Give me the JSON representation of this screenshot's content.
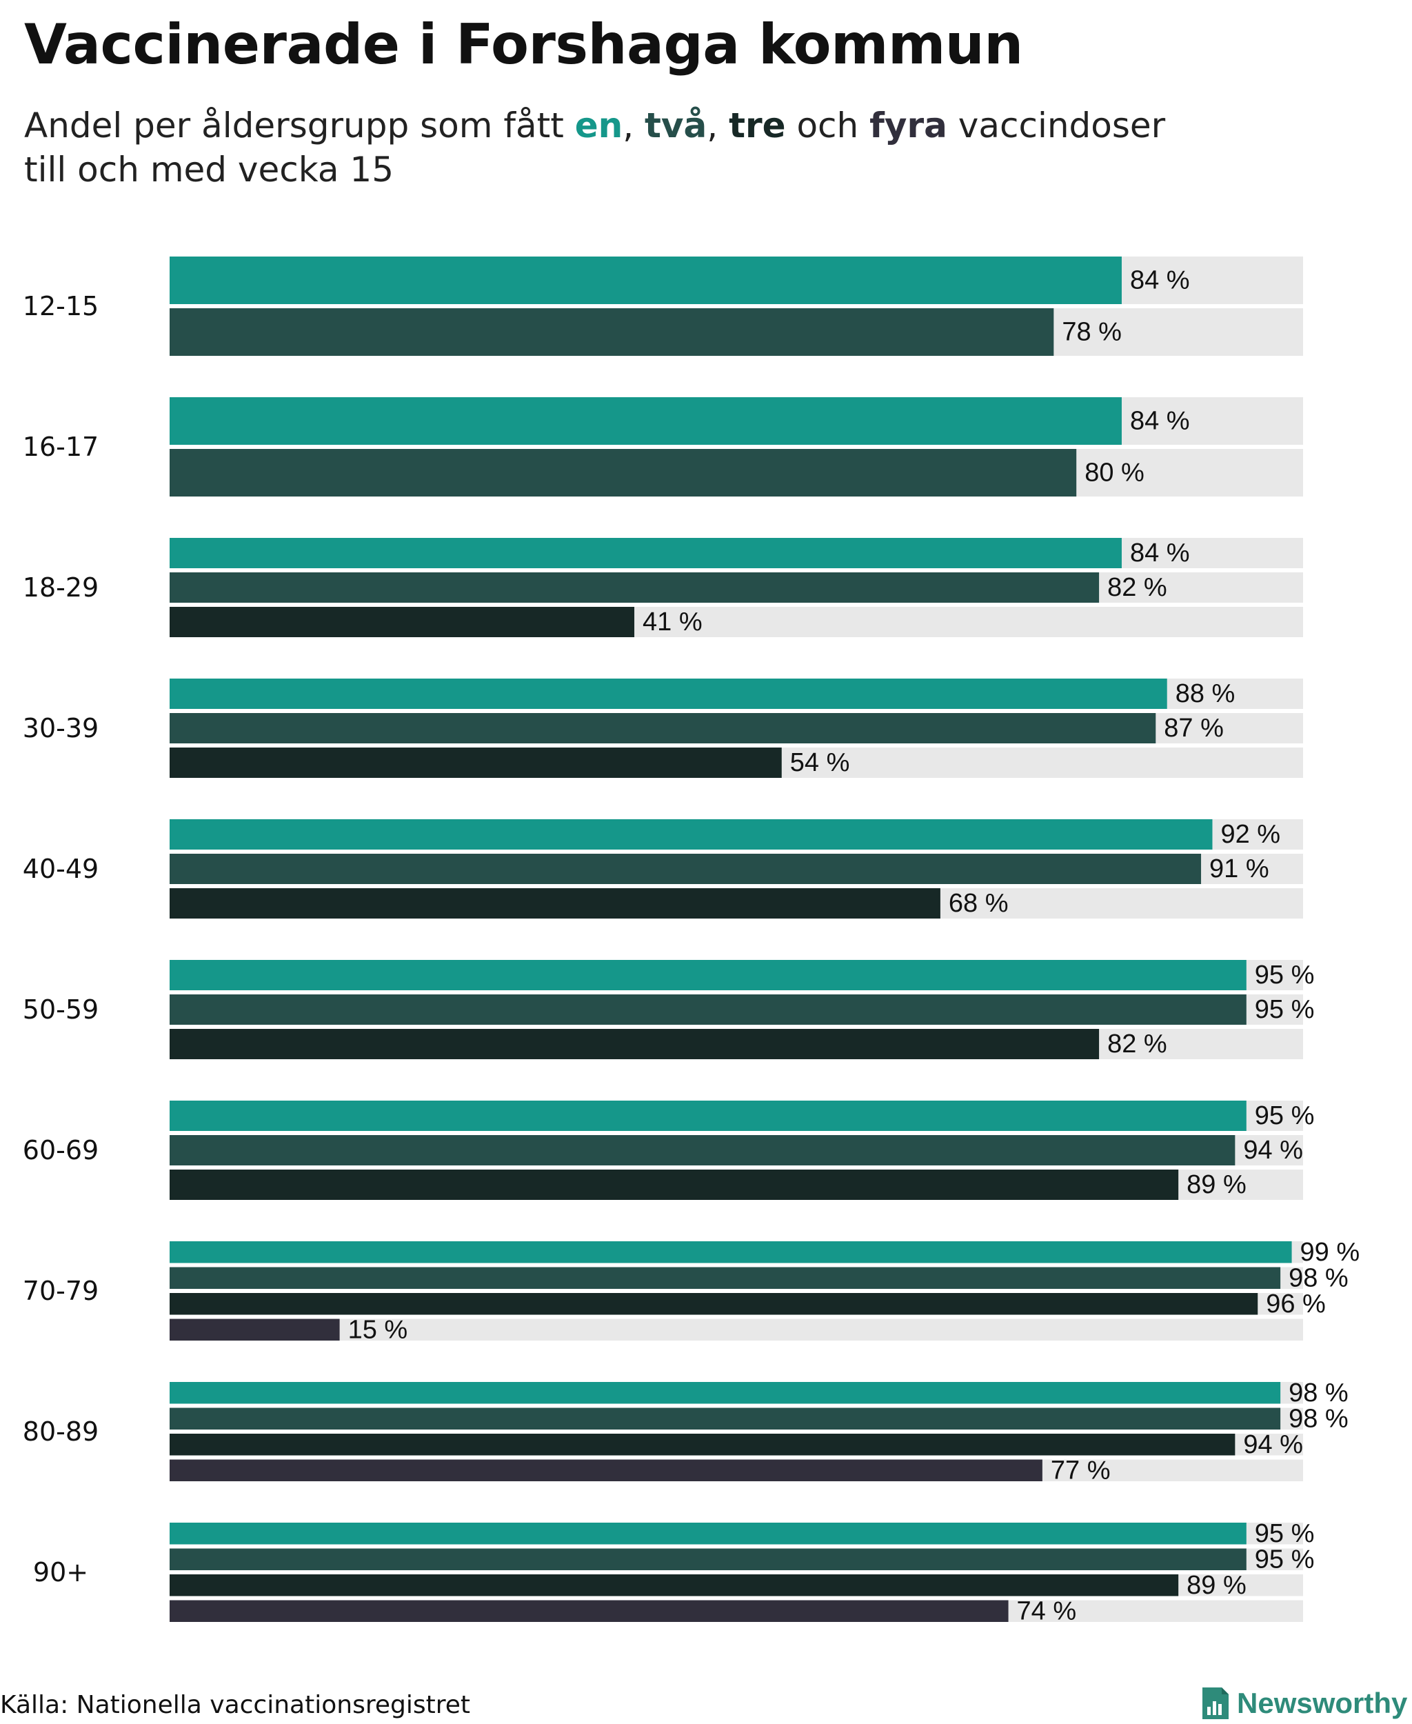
{
  "title": "Vaccinerade i Forshaga kommun",
  "subtitle": {
    "prefix": "Andel per åldersgrupp som fått ",
    "w1": "en",
    "sep1": ", ",
    "w2": "två",
    "sep2": ", ",
    "w3": "tre",
    "sep3": " och ",
    "w4": "fyra",
    "suffix": " vaccindoser",
    "line2": "till och med vecka 15"
  },
  "colors": {
    "dose1": "#15978a",
    "dose2": "#264e4a",
    "dose3": "#172826",
    "dose4": "#312f3c",
    "track": "#e8e8e8"
  },
  "source": "Källa: Nationella vaccinationsregistret",
  "logo": {
    "text": "Newsworthy",
    "icon": "bar-chart-document-icon"
  },
  "chart_data": {
    "type": "bar",
    "orientation": "horizontal",
    "title": "Vaccinerade i Forshaga kommun",
    "value_suffix": " %",
    "xlim": [
      0,
      100
    ],
    "series_names": [
      "en",
      "två",
      "tre",
      "fyra"
    ],
    "groups": [
      {
        "label": "12-15",
        "values": [
          84,
          78
        ]
      },
      {
        "label": "16-17",
        "values": [
          84,
          80
        ]
      },
      {
        "label": "18-29",
        "values": [
          84,
          82,
          41
        ]
      },
      {
        "label": "30-39",
        "values": [
          88,
          87,
          54
        ]
      },
      {
        "label": "40-49",
        "values": [
          92,
          91,
          68
        ]
      },
      {
        "label": "50-59",
        "values": [
          95,
          95,
          82
        ]
      },
      {
        "label": "60-69",
        "values": [
          95,
          94,
          89
        ]
      },
      {
        "label": "70-79",
        "values": [
          99,
          98,
          96,
          15
        ]
      },
      {
        "label": "80-89",
        "values": [
          98,
          98,
          94,
          77
        ]
      },
      {
        "label": "90+",
        "values": [
          95,
          95,
          89,
          74
        ]
      }
    ]
  }
}
